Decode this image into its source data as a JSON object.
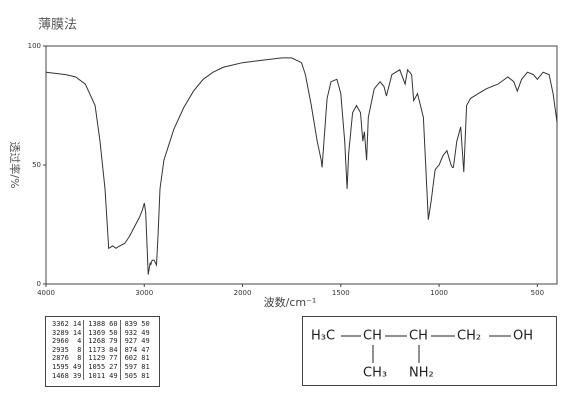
{
  "chart_data": {
    "type": "line",
    "title": "薄膜法",
    "ylabel": "透过率/%",
    "xlabel": "波数/cm⁻¹",
    "xlim": [
      4000,
      400
    ],
    "x_scale_change": 2000,
    "xticks": [
      4000,
      3000,
      2000,
      1500,
      1000,
      500
    ],
    "ylim": [
      0,
      100
    ],
    "yticks": [
      0,
      50,
      100
    ],
    "color": "#333333",
    "x": [
      4000,
      3800,
      3700,
      3600,
      3500,
      3450,
      3400,
      3362,
      3320,
      3289,
      3250,
      3200,
      3150,
      3100,
      3050,
      3020,
      3000,
      2985,
      2960,
      2940,
      2935,
      2920,
      2900,
      2876,
      2860,
      2840,
      2800,
      2700,
      2600,
      2500,
      2400,
      2300,
      2200,
      2100,
      2000,
      1900,
      1800,
      1750,
      1700,
      1680,
      1650,
      1620,
      1600,
      1595,
      1590,
      1570,
      1550,
      1520,
      1500,
      1480,
      1468,
      1460,
      1440,
      1420,
      1400,
      1388,
      1380,
      1369,
      1360,
      1330,
      1300,
      1280,
      1268,
      1240,
      1200,
      1173,
      1160,
      1140,
      1129,
      1110,
      1080,
      1055,
      1040,
      1020,
      1011,
      1000,
      980,
      960,
      939,
      932,
      927,
      910,
      890,
      874,
      860,
      840,
      800,
      760,
      700,
      650,
      620,
      602,
      580,
      550,
      520,
      500,
      470,
      440,
      420,
      400
    ],
    "values": [
      89,
      88,
      87,
      84,
      75,
      60,
      40,
      15,
      16,
      15,
      16,
      17,
      20,
      24,
      28,
      31,
      34,
      30,
      4,
      9,
      8,
      10,
      10,
      8,
      20,
      40,
      52,
      65,
      74,
      81,
      86,
      89,
      91,
      92,
      93,
      94,
      95,
      95,
      93,
      88,
      75,
      60,
      52,
      49,
      55,
      78,
      85,
      86,
      80,
      60,
      40,
      55,
      72,
      75,
      72,
      60,
      64,
      52,
      70,
      82,
      85,
      83,
      79,
      88,
      90,
      84,
      90,
      88,
      77,
      80,
      70,
      27,
      35,
      48,
      49,
      50,
      54,
      56,
      50,
      49,
      49,
      60,
      66,
      47,
      75,
      78,
      80,
      82,
      84,
      87,
      85,
      81,
      86,
      89,
      88,
      86,
      89,
      88,
      80,
      68
    ]
  },
  "peak_table": {
    "rows": [
      [
        "3362",
        "14",
        "1388",
        "60",
        "839",
        "50"
      ],
      [
        "3289",
        "14",
        "1369",
        "50",
        "932",
        "49"
      ],
      [
        "2960",
        "4",
        "1268",
        "79",
        "927",
        "49"
      ],
      [
        "2935",
        "8",
        "1173",
        "84",
        "874",
        "47"
      ],
      [
        "2876",
        "8",
        "1129",
        "77",
        "602",
        "81"
      ],
      [
        "1595",
        "49",
        "1055",
        "27",
        "597",
        "81"
      ],
      [
        "1468",
        "39",
        "1011",
        "49",
        "505",
        "81"
      ]
    ]
  },
  "structure": {
    "atoms": [
      "H₃C",
      "CH",
      "CH",
      "CH₂",
      "OH",
      "CH₃",
      "NH₂"
    ]
  }
}
